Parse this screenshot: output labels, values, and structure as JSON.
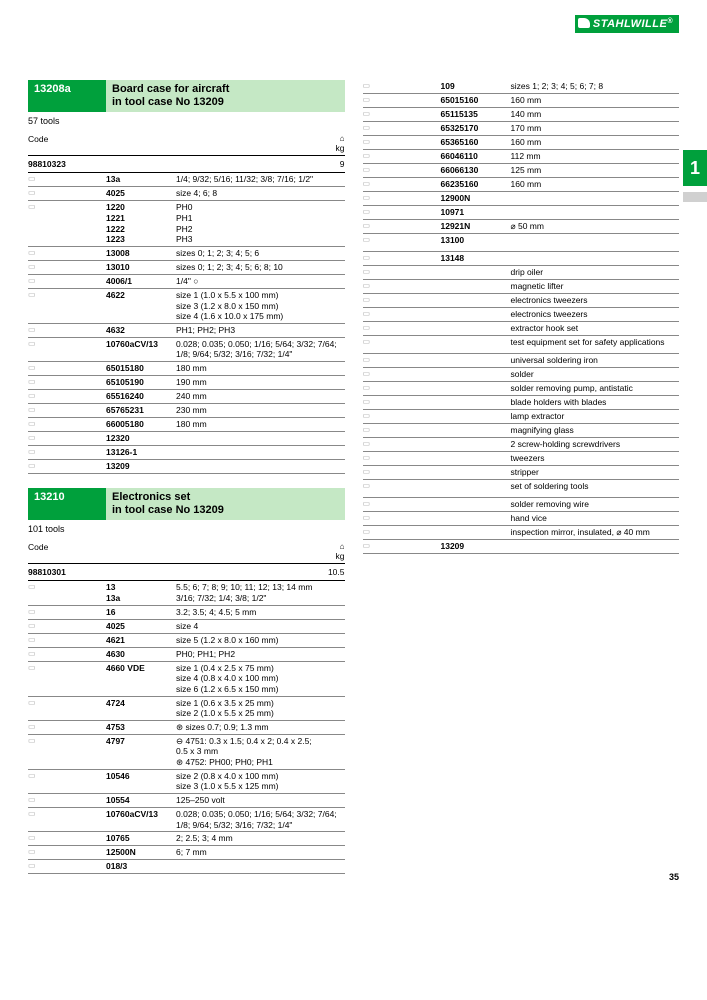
{
  "brand": "STAHLWILLE",
  "side_number": "1",
  "page_number": "35",
  "weight_unit": "kg",
  "weight_icon": "⌂",
  "section1": {
    "code": "13208a",
    "title": "Board case for aircraft\nin tool case No 13209",
    "sub": "57 tools",
    "code_label": "Code",
    "main_code": "98810323",
    "main_weight": "9",
    "rows": [
      {
        "code": "13a",
        "desc": "1/4; 9/32; 5/16; 11/32; 3/8; 7/16; 1/2\""
      },
      {
        "code": "4025",
        "desc": "size 4; 6; 8"
      },
      {
        "code": "1220\n1221\n1222\n1223",
        "desc": "PH0\nPH1\nPH2\nPH3"
      },
      {
        "code": "13008",
        "desc": "sizes 0; 1; 2; 3; 4; 5; 6"
      },
      {
        "code": "13010",
        "desc": "sizes 0; 1; 2; 3; 4; 5; 6; 8; 10"
      },
      {
        "code": "4006/1",
        "desc": "1/4\" ○"
      },
      {
        "code": "4622",
        "desc": "size 1 (1.0 x 5.5 x 100 mm)\nsize 3 (1.2 x 8.0 x 150 mm)\nsize 4 (1.6 x 10.0 x 175 mm)"
      },
      {
        "code": "4632",
        "desc": "PH1; PH2; PH3"
      },
      {
        "code": "10760aCV/13",
        "desc": "0.028; 0.035; 0.050; 1/16; 5/64; 3/32; 7/64; 1/8; 9/64; 5/32; 3/16; 7/32; 1/4\""
      },
      {
        "code": "65015180",
        "desc": "180 mm"
      },
      {
        "code": "65105190",
        "desc": "190 mm"
      },
      {
        "code": "65516240",
        "desc": "240 mm"
      },
      {
        "code": "65765231",
        "desc": "230 mm"
      },
      {
        "code": "66005180",
        "desc": "180 mm"
      },
      {
        "code": "12320",
        "desc": ""
      },
      {
        "code": "13126-1",
        "desc": ""
      },
      {
        "code": "13209",
        "desc": ""
      }
    ]
  },
  "section2": {
    "code": "13210",
    "title": "Electronics set\nin tool case No 13209",
    "sub": "101 tools",
    "code_label": "Code",
    "main_code": "98810301",
    "main_weight": "10.5",
    "rows": [
      {
        "code": "13\n13a",
        "desc": "5.5; 6; 7; 8; 9; 10; 11; 12; 13; 14 mm\n3/16; 7/32; 1/4; 3/8; 1/2\""
      },
      {
        "code": "16",
        "desc": "3.2; 3.5; 4; 4.5; 5 mm"
      },
      {
        "code": "4025",
        "desc": "size 4"
      },
      {
        "code": "4621",
        "desc": "size 5 (1.2 x 8.0 x 160 mm)"
      },
      {
        "code": "4630",
        "desc": "PH0; PH1; PH2"
      },
      {
        "code": "4660 VDE",
        "desc": "size 1 (0.4 x 2.5 x 75 mm)\nsize 4 (0.8 x 4.0 x 100 mm)\nsize 6 (1.2 x 6.5 x 150 mm)"
      },
      {
        "code": "4724",
        "desc": "size 1 (0.6 x 3.5 x 25 mm)\nsize 2 (1.0 x 5.5 x 25 mm)"
      },
      {
        "code": "4753",
        "desc": "⊛ sizes 0.7; 0.9; 1.3 mm"
      },
      {
        "code": "4797",
        "desc": "⊖ 4751: 0.3 x 1.5; 0.4 x 2; 0.4 x 2.5;\n            0.5 x 3 mm\n⊛ 4752: PH00; PH0; PH1"
      },
      {
        "code": "10546",
        "desc": "size 2 (0.8 x 4.0 x 100 mm)\nsize 3 (1.0 x 5.5 x 125 mm)"
      },
      {
        "code": "10554",
        "desc": "125–250 volt"
      },
      {
        "code": "10760aCV/13",
        "desc": "0.028; 0.035; 0.050; 1/16; 5/64; 3/32; 7/64; 1/8; 9/64; 5/32; 3/16; 7/32; 1/4\""
      },
      {
        "code": "10765",
        "desc": "2; 2.5; 3; 4 mm"
      },
      {
        "code": "12500N",
        "desc": "6; 7 mm"
      },
      {
        "code": "018/3",
        "desc": ""
      }
    ]
  },
  "section3": {
    "rows": [
      {
        "code": "109",
        "desc": "sizes 1; 2; 3; 4; 5; 6; 7; 8"
      },
      {
        "code": "65015160",
        "desc": "160 mm"
      },
      {
        "code": "65115135",
        "desc": "140 mm"
      },
      {
        "code": "65325170",
        "desc": "170 mm"
      },
      {
        "code": "65365160",
        "desc": "160 mm"
      },
      {
        "code": "66046110",
        "desc": "112 mm"
      },
      {
        "code": "66066130",
        "desc": "125 mm"
      },
      {
        "code": "66235160",
        "desc": "160 mm"
      },
      {
        "code": "12900N",
        "desc": ""
      },
      {
        "code": "10971",
        "desc": ""
      },
      {
        "code": "12921N",
        "desc": "⌀ 50 mm"
      },
      {
        "code": "13100",
        "desc": ""
      },
      {
        "code": "13148",
        "desc": ""
      },
      {
        "code": "",
        "desc": "drip oiler"
      },
      {
        "code": "",
        "desc": "magnetic lifter"
      },
      {
        "code": "",
        "desc": "electronics tweezers"
      },
      {
        "code": "",
        "desc": "electronics tweezers"
      },
      {
        "code": "",
        "desc": "extractor hook set"
      },
      {
        "code": "",
        "desc": "test equipment set for safety applications"
      },
      {
        "code": "",
        "desc": "universal soldering iron"
      },
      {
        "code": "",
        "desc": "solder"
      },
      {
        "code": "",
        "desc": "solder removing pump, antistatic"
      },
      {
        "code": "",
        "desc": "blade holders with blades"
      },
      {
        "code": "",
        "desc": "lamp extractor"
      },
      {
        "code": "",
        "desc": "magnifying glass"
      },
      {
        "code": "",
        "desc": "2 screw-holding screwdrivers"
      },
      {
        "code": "",
        "desc": "tweezers"
      },
      {
        "code": "",
        "desc": "stripper"
      },
      {
        "code": "",
        "desc": "set of soldering tools"
      },
      {
        "code": "",
        "desc": "solder removing wire"
      },
      {
        "code": "",
        "desc": "hand vice"
      },
      {
        "code": "",
        "desc": "inspection mirror, insulated, ⌀ 40 mm"
      },
      {
        "code": "13209",
        "desc": ""
      }
    ]
  }
}
